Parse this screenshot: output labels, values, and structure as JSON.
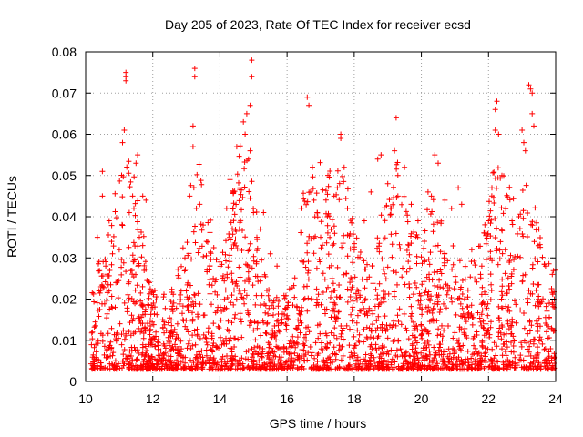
{
  "chart_data": {
    "type": "scatter",
    "title": "Day 205 of 2023, Rate Of TEC Index for receiver ecsd",
    "xlabel": "GPS time / hours",
    "ylabel": "ROTI / TECUs",
    "xlim": [
      10,
      24
    ],
    "ylim": [
      0,
      0.08
    ],
    "xticks": [
      10,
      12,
      14,
      16,
      18,
      20,
      22,
      24
    ],
    "xtick_labels": [
      "10",
      "12",
      "14",
      "16",
      "18",
      "20",
      "22",
      "24"
    ],
    "yticks": [
      0,
      0.01,
      0.02,
      0.03,
      0.04,
      0.05,
      0.06,
      0.07,
      0.08
    ],
    "ytick_labels": [
      "0",
      "0.01",
      "0.02",
      "0.03",
      "0.04",
      "0.05",
      "0.06",
      "0.07",
      "0.08"
    ],
    "grid": true,
    "legend": "none",
    "marker": "plus",
    "color": "#ff0000",
    "series": [
      {
        "values": [
          [
            10.2,
            0.012
          ],
          [
            10.3,
            0.009
          ],
          [
            10.35,
            0.035
          ],
          [
            10.4,
            0.022
          ],
          [
            10.5,
            0.045
          ],
          [
            10.5,
            0.051
          ],
          [
            10.6,
            0.028
          ],
          [
            10.7,
            0.039
          ],
          [
            10.8,
            0.031
          ],
          [
            10.9,
            0.024
          ],
          [
            11.0,
            0.032
          ],
          [
            11.1,
            0.058
          ],
          [
            11.15,
            0.061
          ],
          [
            11.2,
            0.074
          ],
          [
            11.2,
            0.075
          ],
          [
            11.2,
            0.073
          ],
          [
            11.3,
            0.041
          ],
          [
            11.4,
            0.045
          ],
          [
            11.5,
            0.053
          ],
          [
            11.55,
            0.055
          ],
          [
            11.6,
            0.035
          ],
          [
            11.7,
            0.045
          ],
          [
            11.8,
            0.044
          ],
          [
            11.9,
            0.024
          ],
          [
            12.0,
            0.018
          ],
          [
            12.3,
            0.013
          ],
          [
            12.6,
            0.017
          ],
          [
            12.9,
            0.015
          ],
          [
            13.0,
            0.022
          ],
          [
            13.1,
            0.045
          ],
          [
            13.2,
            0.057
          ],
          [
            13.2,
            0.062
          ],
          [
            13.25,
            0.074
          ],
          [
            13.25,
            0.076
          ],
          [
            13.3,
            0.042
          ],
          [
            13.4,
            0.043
          ],
          [
            13.5,
            0.038
          ],
          [
            13.6,
            0.034
          ],
          [
            13.8,
            0.025
          ],
          [
            14.0,
            0.029
          ],
          [
            14.2,
            0.042
          ],
          [
            14.3,
            0.049
          ],
          [
            14.4,
            0.046
          ],
          [
            14.5,
            0.057
          ],
          [
            14.6,
            0.047
          ],
          [
            14.7,
            0.063
          ],
          [
            14.75,
            0.06
          ],
          [
            14.8,
            0.065
          ],
          [
            14.85,
            0.054
          ],
          [
            14.9,
            0.056
          ],
          [
            14.9,
            0.067
          ],
          [
            14.95,
            0.074
          ],
          [
            14.95,
            0.078
          ],
          [
            15.0,
            0.041
          ],
          [
            15.1,
            0.035
          ],
          [
            15.2,
            0.037
          ],
          [
            15.3,
            0.041
          ],
          [
            15.5,
            0.031
          ],
          [
            15.7,
            0.028
          ],
          [
            16.0,
            0.018
          ],
          [
            16.3,
            0.018
          ],
          [
            16.5,
            0.029
          ],
          [
            16.6,
            0.069
          ],
          [
            16.65,
            0.067
          ],
          [
            16.7,
            0.046
          ],
          [
            16.8,
            0.044
          ],
          [
            16.9,
            0.041
          ],
          [
            17.0,
            0.035
          ],
          [
            17.2,
            0.04
          ],
          [
            17.4,
            0.045
          ],
          [
            17.5,
            0.047
          ],
          [
            17.6,
            0.059
          ],
          [
            17.6,
            0.06
          ],
          [
            17.7,
            0.052
          ],
          [
            17.8,
            0.042
          ],
          [
            18.0,
            0.032
          ],
          [
            18.3,
            0.039
          ],
          [
            18.5,
            0.046
          ],
          [
            18.7,
            0.054
          ],
          [
            18.8,
            0.055
          ],
          [
            19.0,
            0.048
          ],
          [
            19.1,
            0.042
          ],
          [
            19.2,
            0.056
          ],
          [
            19.25,
            0.064
          ],
          [
            19.3,
            0.05
          ],
          [
            19.5,
            0.052
          ],
          [
            19.7,
            0.043
          ],
          [
            19.9,
            0.039
          ],
          [
            20.2,
            0.046
          ],
          [
            20.3,
            0.045
          ],
          [
            20.4,
            0.055
          ],
          [
            20.5,
            0.053
          ],
          [
            20.7,
            0.044
          ],
          [
            20.9,
            0.042
          ],
          [
            21.1,
            0.047
          ],
          [
            21.2,
            0.043
          ],
          [
            21.5,
            0.032
          ],
          [
            21.8,
            0.028
          ],
          [
            22.0,
            0.039
          ],
          [
            22.1,
            0.047
          ],
          [
            22.2,
            0.061
          ],
          [
            22.2,
            0.066
          ],
          [
            22.25,
            0.068
          ],
          [
            22.3,
            0.06
          ],
          [
            22.4,
            0.05
          ],
          [
            22.5,
            0.032
          ],
          [
            22.7,
            0.039
          ],
          [
            22.9,
            0.04
          ],
          [
            23.0,
            0.061
          ],
          [
            23.05,
            0.058
          ],
          [
            23.1,
            0.056
          ],
          [
            23.2,
            0.072
          ],
          [
            23.25,
            0.071
          ],
          [
            23.3,
            0.07
          ],
          [
            23.3,
            0.065
          ],
          [
            23.35,
            0.062
          ],
          [
            23.5,
            0.037
          ],
          [
            23.7,
            0.028
          ],
          [
            23.9,
            0.026
          ],
          [
            24.0,
            0.027
          ]
        ]
      }
    ],
    "density_note_values": []
  }
}
